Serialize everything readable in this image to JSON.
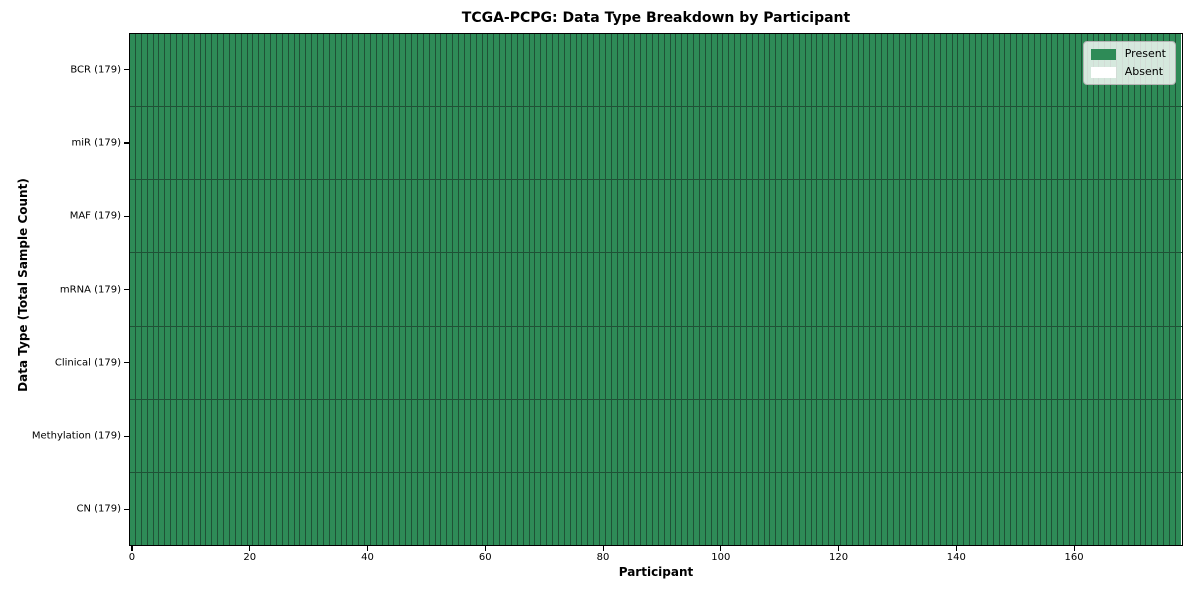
{
  "chart_data": {
    "type": "heatmap",
    "title": "TCGA-PCPG: Data Type Breakdown by Participant",
    "xlabel": "Participant",
    "ylabel": "Data Type (Total Sample Count)",
    "n_participants": 179,
    "x_axis": {
      "ticks": [
        0,
        20,
        40,
        60,
        80,
        100,
        120,
        140,
        160
      ],
      "range": [
        0,
        178
      ]
    },
    "rows": [
      {
        "name": "BCR",
        "label": "BCR (179)",
        "total_samples": 179,
        "present_count": 179,
        "absent_count": 0
      },
      {
        "name": "miR",
        "label": "miR (179)",
        "total_samples": 179,
        "present_count": 179,
        "absent_count": 0
      },
      {
        "name": "MAF",
        "label": "MAF (179)",
        "total_samples": 179,
        "present_count": 179,
        "absent_count": 0
      },
      {
        "name": "mRNA",
        "label": "mRNA (179)",
        "total_samples": 179,
        "present_count": 179,
        "absent_count": 0
      },
      {
        "name": "Clinical",
        "label": "Clinical (179)",
        "total_samples": 179,
        "present_count": 179,
        "absent_count": 0
      },
      {
        "name": "Methylation",
        "label": "Methylation (179)",
        "total_samples": 179,
        "present_count": 179,
        "absent_count": 0
      },
      {
        "name": "CN",
        "label": "CN (179)",
        "total_samples": 179,
        "present_count": 179,
        "absent_count": 0
      }
    ],
    "legend": {
      "position": "upper-right",
      "items": [
        {
          "label": "Present",
          "color": "#2e8b57"
        },
        {
          "label": "Absent",
          "color": "#ffffff"
        }
      ]
    },
    "colors": {
      "present": "#2e8b57",
      "absent": "#ffffff",
      "cell_edge": "#1f5236",
      "spine": "#000000"
    }
  }
}
